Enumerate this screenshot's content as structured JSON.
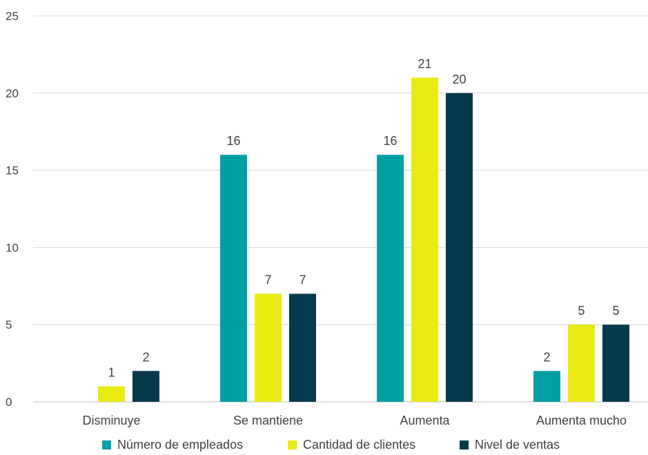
{
  "chart_data": {
    "type": "bar",
    "title": "",
    "xlabel": "",
    "ylabel": "",
    "categories": [
      "Disminuye",
      "Se mantiene",
      "Aumenta",
      "Aumenta mucho"
    ],
    "series": [
      {
        "name": "Número de empleados",
        "color": "#00a0a4",
        "values": [
          0,
          16,
          16,
          2
        ]
      },
      {
        "name": "Cantidad de clientes",
        "color": "#eaea13",
        "values": [
          1,
          7,
          21,
          5
        ]
      },
      {
        "name": "Nivel de ventas",
        "color": "#043a4c",
        "values": [
          2,
          7,
          20,
          5
        ]
      }
    ],
    "ylim": [
      0,
      25
    ],
    "yticks": [
      0,
      5,
      10,
      15,
      20,
      25
    ],
    "grid": true,
    "legend_position": "bottom",
    "data_labels": {
      "Número de empleados": [
        "",
        "16",
        "16",
        "2"
      ],
      "Cantidad de clientes": [
        "1",
        "7",
        "21",
        "5"
      ],
      "Nivel de ventas": [
        "2",
        "7",
        "20",
        "5"
      ]
    }
  }
}
